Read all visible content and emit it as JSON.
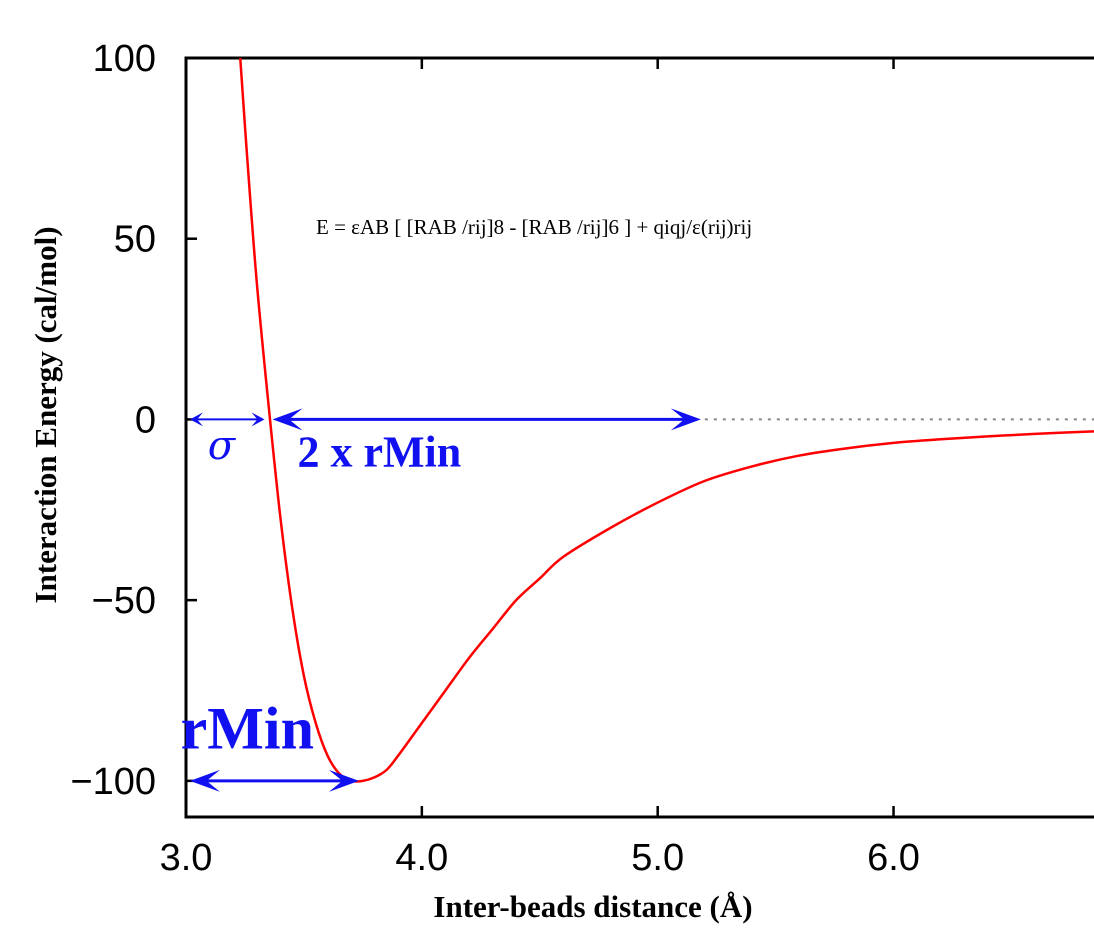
{
  "chart_data": {
    "type": "line",
    "xlabel": "Inter-beads distance (Å)",
    "ylabel": "Interaction Energy (cal/mol)",
    "xlim": [
      3.0,
      6.85
    ],
    "ylim": [
      -110,
      100
    ],
    "x_ticks": [
      3.0,
      4.0,
      5.0,
      6.0
    ],
    "x_tick_labels": [
      "3.0",
      "4.0",
      "5.0",
      "6.0"
    ],
    "y_ticks": [
      100,
      50,
      0,
      -50,
      -100
    ],
    "y_tick_labels": [
      "100",
      "50",
      "0",
      "−50",
      "−100"
    ],
    "grid": false,
    "series": [
      {
        "x": [
          3.23,
          3.26,
          3.3,
          3.35,
          3.4,
          3.45,
          3.5,
          3.55,
          3.6,
          3.65,
          3.7,
          3.75,
          3.8,
          3.85,
          3.9,
          4.0,
          4.1,
          4.2,
          4.3,
          4.4,
          4.5,
          4.6,
          4.8,
          5.0,
          5.2,
          5.4,
          5.6,
          5.8,
          6.0,
          6.2,
          6.4,
          6.6,
          6.85
        ],
        "y": [
          100,
          72,
          38,
          4,
          -27,
          -52,
          -71,
          -84,
          -93,
          -98,
          -100,
          -100,
          -99,
          -97,
          -93,
          -84,
          -75,
          -66,
          -58,
          -50,
          -44,
          -38,
          -30,
          -23,
          -17,
          -13,
          -10,
          -8,
          -6.5,
          -5.5,
          -4.7,
          -4.0,
          -3.3
        ],
        "color": "#ff0000"
      }
    ],
    "reference_line": {
      "y": 0,
      "style": "dotted",
      "color": "#888888"
    },
    "formula": "E = εAB [ [RAB /rij]8 - [RAB /rij]6 ] + qiqj/ε(rij)rij",
    "annotations": [
      {
        "label": "σ",
        "from": 3.0,
        "to": 3.35,
        "y": 0,
        "label_x": 3.15,
        "label_y": -11
      },
      {
        "label": "2 x rMin",
        "from": 3.35,
        "to": 5.2,
        "y": 0,
        "label_x": 3.82,
        "label_y": -13
      },
      {
        "label": "rMin",
        "from": 3.0,
        "to": 3.75,
        "y": -100,
        "label_x": 3.26,
        "label_y": -91
      }
    ],
    "annotation_color": "#1010f0"
  }
}
